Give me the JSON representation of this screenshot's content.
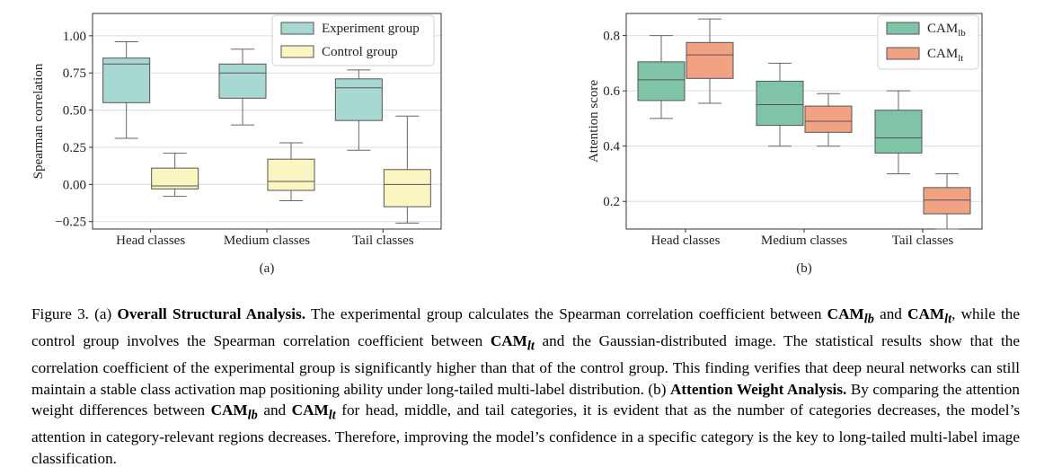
{
  "chart_data": [
    {
      "type": "box",
      "panel_label": "(a)",
      "title": "",
      "xlabel": "",
      "ylabel": "Spearman correlation",
      "categories": [
        "Head classes",
        "Medium classes",
        "Tail classes"
      ],
      "ylim": [
        -0.3,
        1.15
      ],
      "yticks": [
        -0.25,
        0.0,
        0.25,
        0.5,
        0.75,
        1.0
      ],
      "ytick_labels": [
        "−0.25",
        "0.00",
        "0.25",
        "0.50",
        "0.75",
        "1.00"
      ],
      "grid": "horizontal",
      "legend_position": "top-right",
      "series": [
        {
          "name": "Experiment group",
          "color": "#a8d8d2",
          "boxes": [
            {
              "whislo": 0.31,
              "q1": 0.55,
              "med": 0.81,
              "q3": 0.85,
              "whishi": 0.96
            },
            {
              "whislo": 0.4,
              "q1": 0.58,
              "med": 0.75,
              "q3": 0.81,
              "whishi": 0.91
            },
            {
              "whislo": 0.23,
              "q1": 0.43,
              "med": 0.65,
              "q3": 0.71,
              "whishi": 0.77
            }
          ]
        },
        {
          "name": "Control group",
          "color": "#fbf5c2",
          "boxes": [
            {
              "whislo": -0.08,
              "q1": -0.03,
              "med": -0.01,
              "q3": 0.11,
              "whishi": 0.21
            },
            {
              "whislo": -0.11,
              "q1": -0.04,
              "med": 0.02,
              "q3": 0.17,
              "whishi": 0.28
            },
            {
              "whislo": -0.26,
              "q1": -0.15,
              "med": 0.0,
              "q3": 0.1,
              "whishi": 0.46
            }
          ]
        }
      ]
    },
    {
      "type": "box",
      "panel_label": "(b)",
      "title": "",
      "xlabel": "",
      "ylabel": "Attention score",
      "categories": [
        "Head classes",
        "Medium classes",
        "Tail classes"
      ],
      "ylim": [
        0.1,
        0.88
      ],
      "yticks": [
        0.2,
        0.4,
        0.6,
        0.8
      ],
      "ytick_labels": [
        "0.2",
        "0.4",
        "0.6",
        "0.8"
      ],
      "grid": "horizontal",
      "legend_position": "top-right",
      "series": [
        {
          "name": "CAM",
          "name_sub": "lb",
          "color": "#80c4a8",
          "boxes": [
            {
              "whislo": 0.5,
              "q1": 0.565,
              "med": 0.64,
              "q3": 0.705,
              "whishi": 0.8
            },
            {
              "whislo": 0.4,
              "q1": 0.475,
              "med": 0.55,
              "q3": 0.635,
              "whishi": 0.7
            },
            {
              "whislo": 0.3,
              "q1": 0.375,
              "med": 0.43,
              "q3": 0.53,
              "whishi": 0.6
            }
          ]
        },
        {
          "name": "CAM",
          "name_sub": "lt",
          "color": "#f1a282",
          "boxes": [
            {
              "whislo": 0.555,
              "q1": 0.645,
              "med": 0.73,
              "q3": 0.775,
              "whishi": 0.86
            },
            {
              "whislo": 0.4,
              "q1": 0.45,
              "med": 0.49,
              "q3": 0.545,
              "whishi": 0.59
            },
            {
              "whislo": 0.1,
              "q1": 0.155,
              "med": 0.205,
              "q3": 0.25,
              "whishi": 0.3
            }
          ]
        }
      ]
    }
  ],
  "caption": {
    "figure_label": "Figure 3.",
    "part_a_marker": "(a)",
    "part_a_title": "Overall Structural Analysis.",
    "t1": "The experimental group calculates the Spearman correlation coefficient between",
    "t2": "and",
    "t3": ", while the control group involves the Spearman correlation coefficient between",
    "t4": "and the Gaussian-distributed image. The statistical results show that the correlation coefficient of the experimental group is significantly higher than that of the control group. This finding verifies that deep neural networks can still maintain a stable class activation map positioning ability under long-tailed multi-label distribution.",
    "part_b_marker": "(b)",
    "part_b_title": "Attention Weight Analysis.",
    "t5": "By comparing the attention weight differences between",
    "t6": "and",
    "t7": "for head, middle, and tail categories, it is evident that as the number of categories decreases, the model’s attention in category-relevant regions decreases. Therefore, improving the model’s confidence in a specific category is the key to long-tailed multi-label image classification.",
    "sym_base": "CAM",
    "sub_lb": "lb",
    "sub_lt": "lt"
  }
}
